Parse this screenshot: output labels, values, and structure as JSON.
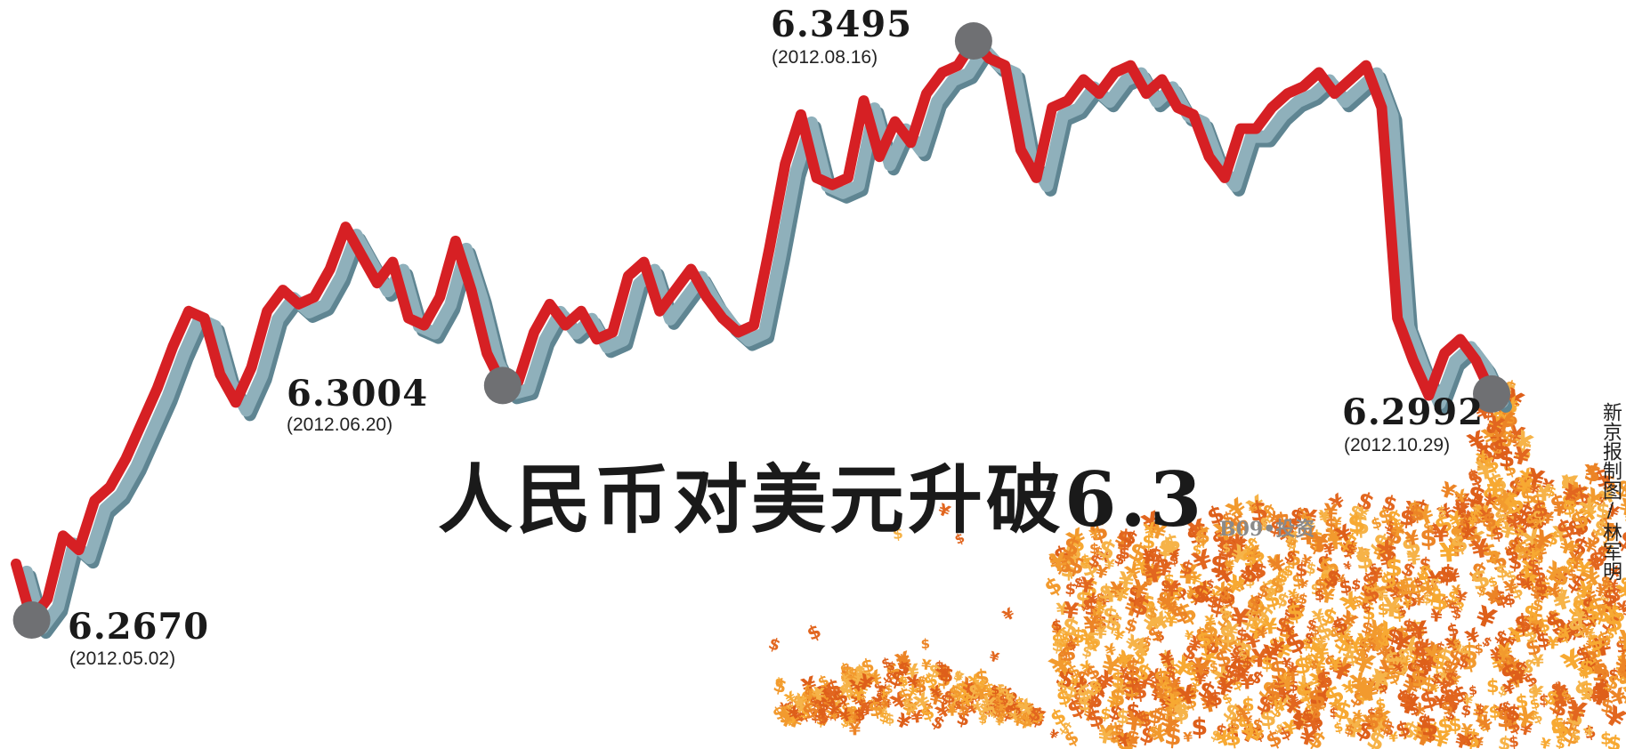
{
  "headline": "人民币对美元升破6.3",
  "section": "B09•投资",
  "credit": "新京报制图/林军明",
  "colors": {
    "line": "#d62024",
    "shadow": "#8fb0bb",
    "marker": "#6f7073",
    "money_light": "#f7a932",
    "money_dark": "#e2661f"
  },
  "chart_data": {
    "type": "line",
    "title": "人民币对美元升破6.3",
    "xlabel": "",
    "ylabel": "",
    "y_direction": "inverted (lower rate drawn lower)",
    "x_range": [
      "2012.05.02",
      "2012.10.29"
    ],
    "ylim": [
      6.26,
      6.36
    ],
    "grid": false,
    "legend": "none",
    "series": [
      {
        "values": [
          6.275,
          6.267,
          6.27,
          6.279,
          6.277,
          6.284,
          6.286,
          6.29,
          6.295,
          6.3,
          6.306,
          6.311,
          6.31,
          6.302,
          6.298,
          6.303,
          6.311,
          6.314,
          6.312,
          6.313,
          6.317,
          6.323,
          6.319,
          6.315,
          6.318,
          6.31,
          6.309,
          6.313,
          6.321,
          6.314,
          6.305,
          6.3004,
          6.301,
          6.308,
          6.312,
          6.309,
          6.311,
          6.307,
          6.308,
          6.316,
          6.318,
          6.311,
          6.314,
          6.317,
          6.313,
          6.31,
          6.308,
          6.309,
          6.32,
          6.332,
          6.339,
          6.33,
          6.329,
          6.33,
          6.341,
          6.333,
          6.338,
          6.335,
          6.342,
          6.345,
          6.346,
          6.3495,
          6.347,
          6.346,
          6.334,
          6.33,
          6.34,
          6.341,
          6.344,
          6.342,
          6.345,
          6.346,
          6.342,
          6.344,
          6.34,
          6.339,
          6.333,
          6.33,
          6.337,
          6.337,
          6.34,
          6.342,
          6.343,
          6.345,
          6.342,
          6.344,
          6.346,
          6.34,
          6.31,
          6.304,
          6.299,
          6.305,
          6.307,
          6.304,
          6.2992
        ]
      }
    ],
    "annotations": [
      {
        "label": "6.2670",
        "date": "(2012.05.02)",
        "point_index": 1
      },
      {
        "label": "6.3004",
        "date": "(2012.06.20)",
        "point_index": 31
      },
      {
        "label": "6.3495",
        "date": "(2012.08.16)",
        "point_index": 61
      },
      {
        "label": "6.2992",
        "date": "(2012.10.29)",
        "point_index": 94
      }
    ]
  }
}
